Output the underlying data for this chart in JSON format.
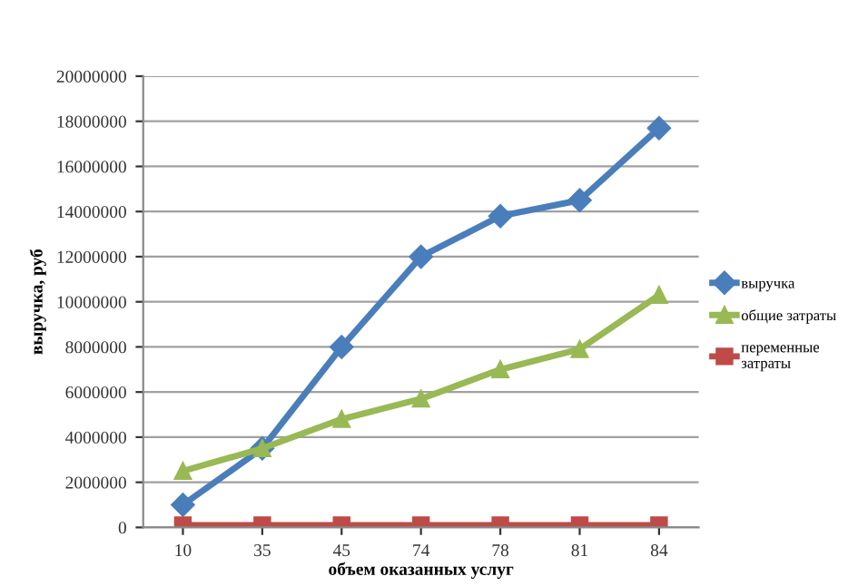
{
  "chart_data": {
    "type": "line",
    "xlabel": "объем оказанных услуг",
    "ylabel": "выручка, руб",
    "categories": [
      "10",
      "35",
      "45",
      "74",
      "78",
      "81",
      "84"
    ],
    "series": [
      {
        "name": "выручка",
        "color": "#4a7ebb",
        "marker": "diamond",
        "values": [
          1000000,
          3500000,
          8000000,
          12000000,
          13800000,
          14500000,
          17700000
        ]
      },
      {
        "name": "общие затраты",
        "color": "#98b954",
        "marker": "triangle",
        "values": [
          2500000,
          3500000,
          4800000,
          5700000,
          7000000,
          7900000,
          10300000
        ]
      },
      {
        "name": "переменные затраты",
        "color": "#be4b48",
        "marker": "square",
        "values": [
          100000,
          100000,
          100000,
          100000,
          100000,
          100000,
          100000
        ]
      }
    ],
    "ylim": [
      0,
      20000000
    ],
    "yticks": [
      0,
      2000000,
      4000000,
      6000000,
      8000000,
      10000000,
      12000000,
      14000000,
      16000000,
      18000000,
      20000000
    ],
    "grid": "y",
    "legend": "right",
    "line_style": "solid"
  }
}
